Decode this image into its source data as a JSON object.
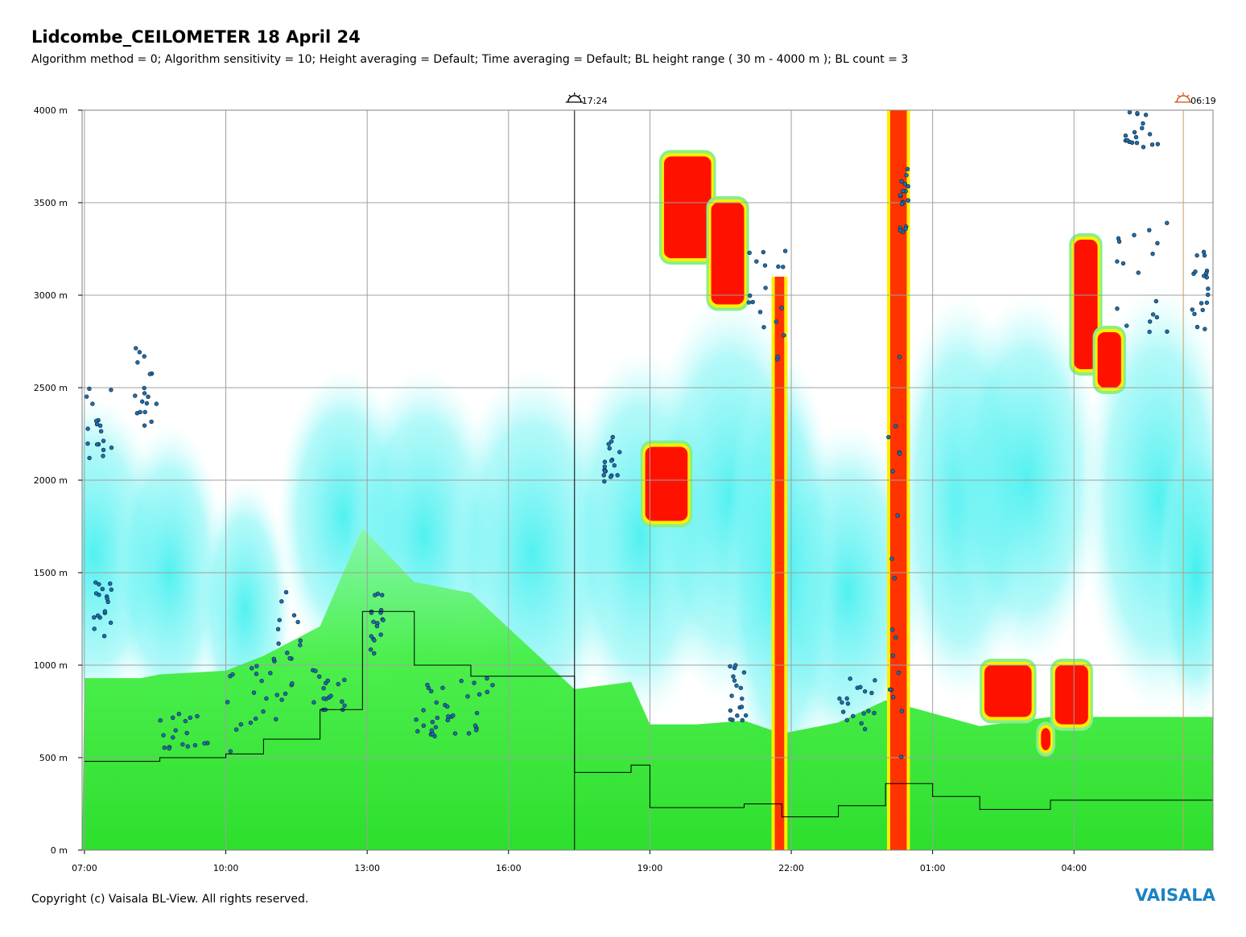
{
  "header": {
    "title": "Lidcombe_CEILOMETER 18 April 24",
    "subtitle": "Algorithm method = 0; Algorithm sensitivity = 10; Height averaging = Default; Time averaging = Default; BL height range ( 30 m - 4000 m ); BL count = 3"
  },
  "footer": {
    "copyright": "Copyright (c) Vaisala BL-View. All rights reserved.",
    "logo_text": "VAISALA"
  },
  "colors": {
    "background_low": "#22dd22",
    "mid_scatter": "#33eeee",
    "high_backscatter": "#ff1100",
    "transition": "#ffee00",
    "bl_points": "#1a6fb0",
    "grid": "#a0a0a0",
    "logo": "#1a82c4"
  },
  "chart_data": {
    "type": "heatmap",
    "title": "Lidcombe_CEILOMETER 18 April 24",
    "xlabel": "",
    "ylabel": "",
    "x_ticks": [
      {
        "label": "07:00",
        "h": 0
      },
      {
        "label": "10:00",
        "h": 3
      },
      {
        "label": "13:00",
        "h": 6
      },
      {
        "label": "16:00",
        "h": 9
      },
      {
        "label": "19:00",
        "h": 12
      },
      {
        "label": "22:00",
        "h": 15
      },
      {
        "label": "01:00",
        "h": 18
      },
      {
        "label": "04:00",
        "h": 21
      }
    ],
    "x_range_hours": [
      -0.05,
      23.95
    ],
    "y_ticks": [
      {
        "label": "0 m",
        "v": 0
      },
      {
        "label": "500 m",
        "v": 500
      },
      {
        "label": "1000 m",
        "v": 1000
      },
      {
        "label": "1500 m",
        "v": 1500
      },
      {
        "label": "2000 m",
        "v": 2000
      },
      {
        "label": "2500 m",
        "v": 2500
      },
      {
        "label": "3000 m",
        "v": 3000
      },
      {
        "label": "3500 m",
        "v": 3500
      },
      {
        "label": "4000 m",
        "v": 4000
      }
    ],
    "ylim": [
      0,
      4000
    ],
    "grid": true,
    "annotations": [
      {
        "label": "17:24",
        "h": 10.4,
        "kind": "sunset"
      },
      {
        "label": "06:19",
        "h": 23.32,
        "kind": "sunrise"
      }
    ],
    "bl_height_step_line": [
      {
        "h": 0.0,
        "v": 480
      },
      {
        "h": 1.2,
        "v": 480
      },
      {
        "h": 1.6,
        "v": 500
      },
      {
        "h": 3.0,
        "v": 520
      },
      {
        "h": 3.8,
        "v": 600
      },
      {
        "h": 5.0,
        "v": 760
      },
      {
        "h": 5.9,
        "v": 1290
      },
      {
        "h": 7.0,
        "v": 1000
      },
      {
        "h": 8.2,
        "v": 940
      },
      {
        "h": 10.4,
        "v": 420
      },
      {
        "h": 11.6,
        "v": 460
      },
      {
        "h": 12.0,
        "v": 230
      },
      {
        "h": 13.0,
        "v": 230
      },
      {
        "h": 14.0,
        "v": 250
      },
      {
        "h": 14.8,
        "v": 180
      },
      {
        "h": 16.0,
        "v": 240
      },
      {
        "h": 17.0,
        "v": 360
      },
      {
        "h": 18.0,
        "v": 290
      },
      {
        "h": 19.0,
        "v": 220
      },
      {
        "h": 20.5,
        "v": 270
      },
      {
        "h": 22.6,
        "v": 270
      },
      {
        "h": 23.95,
        "v": 270
      }
    ],
    "high_backscatter_regions": [
      {
        "h0": 12.3,
        "h1": 13.3,
        "v0": 3200,
        "v1": 3750
      },
      {
        "h0": 13.3,
        "h1": 14.0,
        "v0": 2950,
        "v1": 3500
      },
      {
        "h0": 11.9,
        "h1": 12.8,
        "v0": 1780,
        "v1": 2180
      },
      {
        "h0": 19.1,
        "h1": 20.1,
        "v0": 720,
        "v1": 1000
      },
      {
        "h0": 20.6,
        "h1": 21.3,
        "v0": 680,
        "v1": 1000
      },
      {
        "h0": 20.3,
        "h1": 20.5,
        "v0": 540,
        "v1": 660
      },
      {
        "h0": 21.0,
        "h1": 21.5,
        "v0": 2600,
        "v1": 3300
      },
      {
        "h0": 21.5,
        "h1": 22.0,
        "v0": 2500,
        "v1": 2800
      }
    ],
    "vertical_columns": [
      {
        "h0": 14.65,
        "h1": 14.85,
        "v0": 0,
        "v1": 3100
      },
      {
        "h0": 17.1,
        "h1": 17.45,
        "v0": 0,
        "v1": 4000
      }
    ]
  }
}
